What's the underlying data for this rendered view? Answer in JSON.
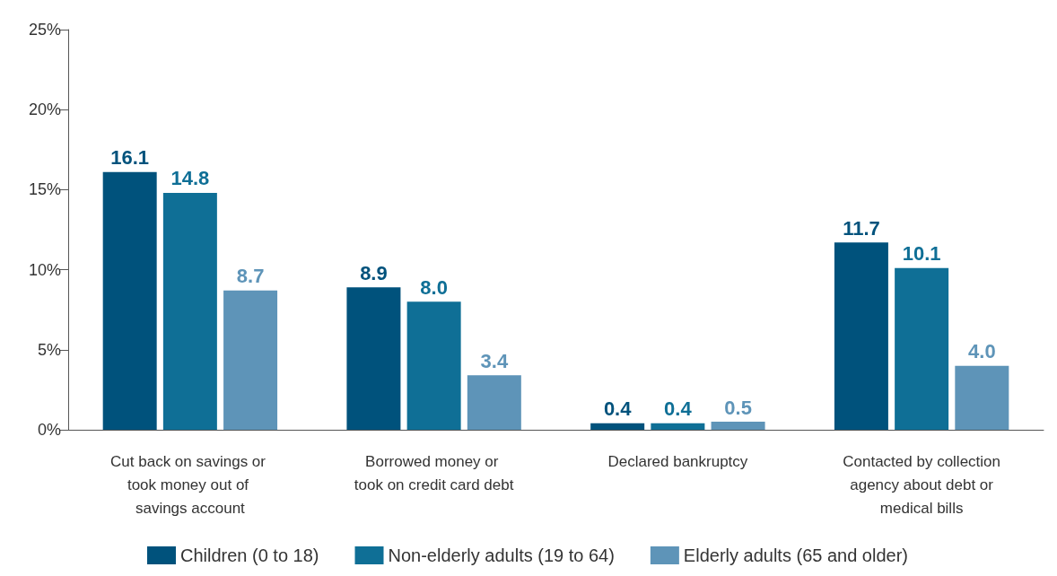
{
  "chart_data": {
    "type": "bar",
    "categories": [
      "Cut back on savings or took money out of savings account",
      "Borrowed money or took on credit card debt",
      "Declared bankruptcy",
      "Contacted by collection agency about debt or medical bills"
    ],
    "series": [
      {
        "name": "Children (0 to 18)",
        "color": "#00527c",
        "values": [
          16.1,
          8.9,
          0.4,
          11.7
        ],
        "value_labels": [
          "16.1",
          "8.9",
          "0.4",
          "11.7"
        ]
      },
      {
        "name": "Non-elderly adults (19 to 64)",
        "color": "#0f6f96",
        "values": [
          14.8,
          8.0,
          0.4,
          10.1
        ],
        "value_labels": [
          "14.8",
          "8.0",
          "0.4",
          "10.1"
        ]
      },
      {
        "name": "Elderly adults (65 and older)",
        "color": "#5e94b8",
        "values": [
          8.7,
          3.4,
          0.5,
          4.0
        ],
        "value_labels": [
          "8.7",
          "3.4",
          "0.5",
          "4.0"
        ]
      }
    ],
    "ylim": [
      0,
      25
    ],
    "yticks": [
      {
        "value": 0,
        "label": "0%"
      },
      {
        "value": 5,
        "label": "5%"
      },
      {
        "value": 10,
        "label": "10%"
      },
      {
        "value": 15,
        "label": "15%"
      },
      {
        "value": 20,
        "label": "20%"
      },
      {
        "value": 25,
        "label": "25%"
      }
    ],
    "grid": false,
    "legend": "bottom"
  }
}
